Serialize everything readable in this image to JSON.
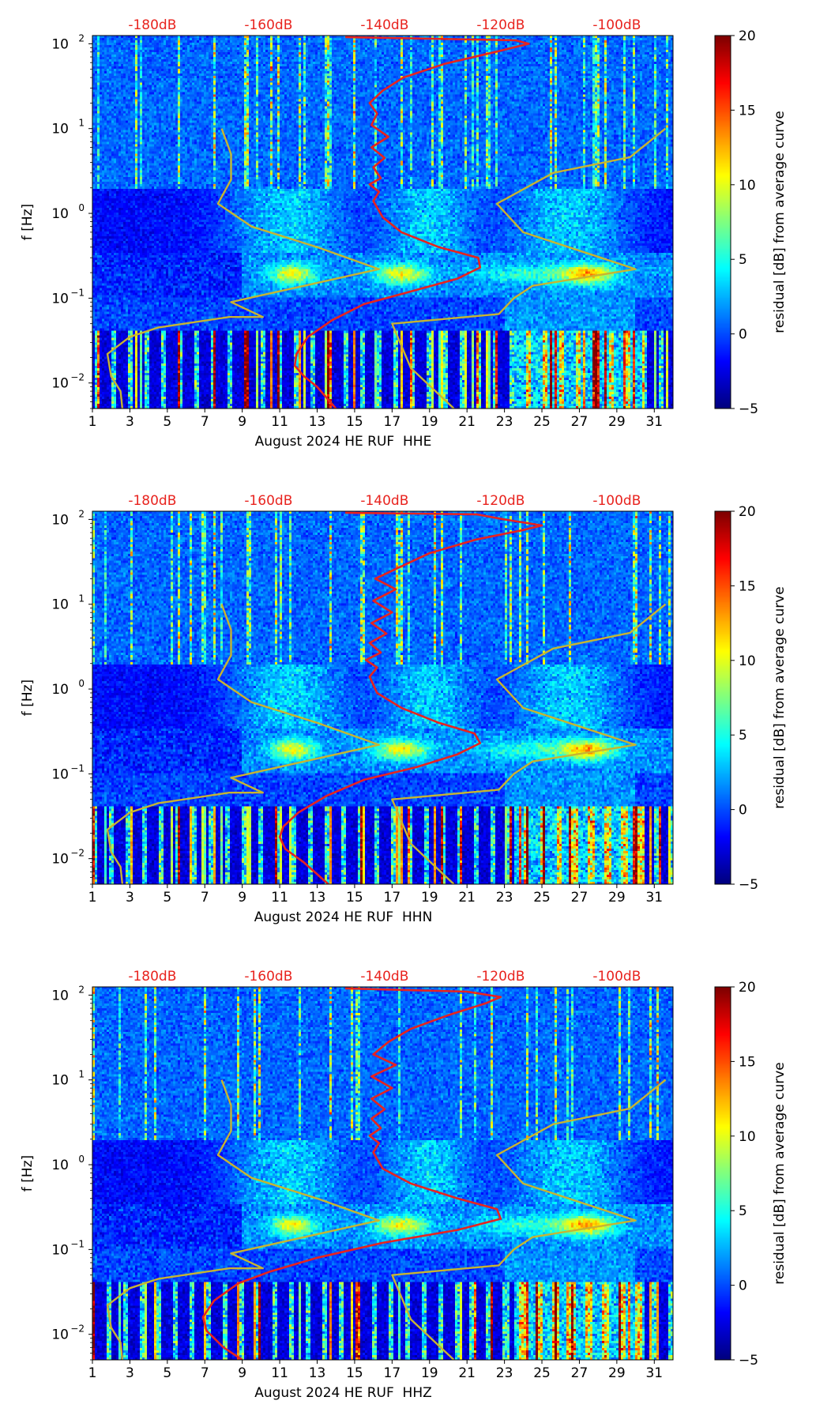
{
  "colorbar": {
    "label": "residual [dB] from average curve",
    "ticks": [
      "20",
      "15",
      "10",
      "5",
      "0",
      "−5"
    ],
    "tick_values": [
      20,
      15,
      10,
      5,
      0,
      -5
    ],
    "range": [
      -5,
      20
    ],
    "colormap": "jet"
  },
  "colors": {
    "psd_curve": "#e8231e",
    "noise_model": "#c8b431",
    "top_labels": "#e8231e"
  },
  "chart_data": [
    {
      "type": "heatmap",
      "channel": "HHE",
      "xlabel": "August 2024 HE RUF  HHE",
      "ylabel": "f [Hz]",
      "x_ticks": [
        "1",
        "3",
        "5",
        "7",
        "9",
        "11",
        "13",
        "15",
        "17",
        "19",
        "21",
        "23",
        "25",
        "27",
        "29",
        "31"
      ],
      "x_tick_values": [
        1,
        3,
        5,
        7,
        9,
        11,
        13,
        15,
        17,
        19,
        21,
        23,
        25,
        27,
        29,
        31
      ],
      "xlim": [
        1,
        32
      ],
      "y_scale": "log",
      "ylim": [
        0.005,
        125
      ],
      "y_ticks": [
        {
          "base": "10",
          "exp": "2",
          "value": 100
        },
        {
          "base": "10",
          "exp": "1",
          "value": 10
        },
        {
          "base": "10",
          "exp": "0",
          "value": 1
        },
        {
          "base": "10",
          "exp": "−1",
          "value": 0.1
        },
        {
          "base": "10",
          "exp": "−2",
          "value": 0.01
        }
      ],
      "top_axis_labels": [
        "-180dB",
        "-160dB",
        "-140dB",
        "-120dB",
        "-100dB"
      ],
      "top_axis_values": [
        -180,
        -160,
        -140,
        -120,
        -100
      ],
      "overlay_curves": [
        {
          "role": "station-average-psd",
          "color": "red",
          "points": [
            [
              14.0,
              0.005
            ],
            [
              13.0,
              0.009
            ],
            [
              12.3,
              0.012
            ],
            [
              11.8,
              0.016
            ],
            [
              11.9,
              0.022
            ],
            [
              12.5,
              0.035
            ],
            [
              13.8,
              0.055
            ],
            [
              15.5,
              0.085
            ],
            [
              18.0,
              0.12
            ],
            [
              20.5,
              0.17
            ],
            [
              21.7,
              0.23
            ],
            [
              21.6,
              0.3
            ],
            [
              19.5,
              0.4
            ],
            [
              17.5,
              0.6
            ],
            [
              16.5,
              0.9
            ],
            [
              16.0,
              1.4
            ],
            [
              16.3,
              1.8
            ],
            [
              15.8,
              2.2
            ],
            [
              16.4,
              2.6
            ],
            [
              16.0,
              3.5
            ],
            [
              16.6,
              4.5
            ],
            [
              15.9,
              6
            ],
            [
              16.8,
              8
            ],
            [
              15.9,
              11
            ],
            [
              16.2,
              15
            ],
            [
              15.8,
              20
            ],
            [
              16.5,
              28
            ],
            [
              17.6,
              40
            ],
            [
              19.8,
              58
            ],
            [
              22.5,
              80
            ],
            [
              24.3,
              100
            ],
            [
              23.6,
              110
            ],
            [
              14.5,
              120
            ]
          ]
        },
        {
          "role": "noise-model-low",
          "color": "olive",
          "points": [
            [
              2.6,
              0.005
            ],
            [
              2.5,
              0.008
            ],
            [
              2.0,
              0.012
            ],
            [
              1.8,
              0.022
            ],
            [
              3.0,
              0.035
            ],
            [
              4.5,
              0.045
            ],
            [
              8.3,
              0.06
            ],
            [
              10.1,
              0.06
            ],
            [
              8.4,
              0.09
            ],
            [
              16.3,
              0.22
            ],
            [
              13.0,
              0.4
            ],
            [
              9.5,
              0.7
            ],
            [
              7.7,
              1.3
            ],
            [
              8.4,
              2.5
            ],
            [
              8.4,
              5
            ],
            [
              7.9,
              10
            ]
          ]
        },
        {
          "role": "noise-model-high",
          "color": "olive",
          "points": [
            [
              20.3,
              0.005
            ],
            [
              18.0,
              0.015
            ],
            [
              17.0,
              0.05
            ],
            [
              22.7,
              0.065
            ],
            [
              23.5,
              0.1
            ],
            [
              24.5,
              0.14
            ],
            [
              30.0,
              0.22
            ],
            [
              24.0,
              0.6
            ],
            [
              22.6,
              1.3
            ],
            [
              25.6,
              3.0
            ],
            [
              29.7,
              4.6
            ],
            [
              31.6,
              10
            ]
          ]
        }
      ]
    },
    {
      "type": "heatmap",
      "channel": "HHN",
      "xlabel": "August 2024 HE RUF  HHN",
      "ylabel": "f [Hz]",
      "x_ticks": [
        "1",
        "3",
        "5",
        "7",
        "9",
        "11",
        "13",
        "15",
        "17",
        "19",
        "21",
        "23",
        "25",
        "27",
        "29",
        "31"
      ],
      "x_tick_values": [
        1,
        3,
        5,
        7,
        9,
        11,
        13,
        15,
        17,
        19,
        21,
        23,
        25,
        27,
        29,
        31
      ],
      "xlim": [
        1,
        32
      ],
      "y_scale": "log",
      "ylim": [
        0.005,
        125
      ],
      "y_ticks": [
        {
          "base": "10",
          "exp": "2",
          "value": 100
        },
        {
          "base": "10",
          "exp": "1",
          "value": 10
        },
        {
          "base": "10",
          "exp": "0",
          "value": 1
        },
        {
          "base": "10",
          "exp": "−1",
          "value": 0.1
        },
        {
          "base": "10",
          "exp": "−2",
          "value": 0.01
        }
      ],
      "top_axis_labels": [
        "-180dB",
        "-160dB",
        "-140dB",
        "-120dB",
        "-100dB"
      ],
      "top_axis_values": [
        -180,
        -160,
        -140,
        -120,
        -100
      ],
      "overlay_curves": [
        {
          "role": "station-average-psd",
          "color": "red",
          "points": [
            [
              13.6,
              0.005
            ],
            [
              12.3,
              0.009
            ],
            [
              11.3,
              0.013
            ],
            [
              11.0,
              0.018
            ],
            [
              11.2,
              0.024
            ],
            [
              12.0,
              0.035
            ],
            [
              13.5,
              0.055
            ],
            [
              15.5,
              0.085
            ],
            [
              18.3,
              0.12
            ],
            [
              20.5,
              0.17
            ],
            [
              21.7,
              0.23
            ],
            [
              21.4,
              0.3
            ],
            [
              19.5,
              0.4
            ],
            [
              17.5,
              0.6
            ],
            [
              16.2,
              0.9
            ],
            [
              15.8,
              1.4
            ],
            [
              16.2,
              1.8
            ],
            [
              15.6,
              2.2
            ],
            [
              16.4,
              2.7
            ],
            [
              15.8,
              3.5
            ],
            [
              16.7,
              4.5
            ],
            [
              15.9,
              6
            ],
            [
              17.0,
              8
            ],
            [
              16.0,
              11
            ],
            [
              17.2,
              15
            ],
            [
              16.1,
              20
            ],
            [
              17.5,
              28
            ],
            [
              19.0,
              40
            ],
            [
              21.5,
              58
            ],
            [
              24.0,
              75
            ],
            [
              25.0,
              85
            ],
            [
              23.0,
              100
            ],
            [
              21.5,
              115
            ],
            [
              14.5,
              120
            ]
          ]
        },
        {
          "role": "noise-model-low",
          "color": "olive",
          "points": [
            [
              2.6,
              0.005
            ],
            [
              2.5,
              0.008
            ],
            [
              2.0,
              0.012
            ],
            [
              1.8,
              0.022
            ],
            [
              3.0,
              0.035
            ],
            [
              4.5,
              0.045
            ],
            [
              8.3,
              0.06
            ],
            [
              10.1,
              0.06
            ],
            [
              8.4,
              0.09
            ],
            [
              16.3,
              0.22
            ],
            [
              13.0,
              0.4
            ],
            [
              9.5,
              0.7
            ],
            [
              7.7,
              1.3
            ],
            [
              8.4,
              2.5
            ],
            [
              8.4,
              5
            ],
            [
              7.9,
              10
            ]
          ]
        },
        {
          "role": "noise-model-high",
          "color": "olive",
          "points": [
            [
              20.3,
              0.005
            ],
            [
              18.0,
              0.015
            ],
            [
              17.0,
              0.05
            ],
            [
              22.7,
              0.065
            ],
            [
              23.5,
              0.1
            ],
            [
              24.5,
              0.14
            ],
            [
              30.0,
              0.22
            ],
            [
              24.0,
              0.6
            ],
            [
              22.6,
              1.3
            ],
            [
              25.6,
              3.0
            ],
            [
              29.7,
              4.6
            ],
            [
              31.6,
              10
            ]
          ]
        }
      ]
    },
    {
      "type": "heatmap",
      "channel": "HHZ",
      "xlabel": "August 2024 HE RUF  HHZ",
      "ylabel": "f [Hz]",
      "x_ticks": [
        "1",
        "3",
        "5",
        "7",
        "9",
        "11",
        "13",
        "15",
        "17",
        "19",
        "21",
        "23",
        "25",
        "27",
        "29",
        "31"
      ],
      "x_tick_values": [
        1,
        3,
        5,
        7,
        9,
        11,
        13,
        15,
        17,
        19,
        21,
        23,
        25,
        27,
        29,
        31
      ],
      "xlim": [
        1,
        32
      ],
      "y_scale": "log",
      "ylim": [
        0.005,
        125
      ],
      "y_ticks": [
        {
          "base": "10",
          "exp": "2",
          "value": 100
        },
        {
          "base": "10",
          "exp": "1",
          "value": 10
        },
        {
          "base": "10",
          "exp": "0",
          "value": 1
        },
        {
          "base": "10",
          "exp": "−1",
          "value": 0.1
        },
        {
          "base": "10",
          "exp": "−2",
          "value": 0.01
        }
      ],
      "top_axis_labels": [
        "-180dB",
        "-160dB",
        "-140dB",
        "-120dB",
        "-100dB"
      ],
      "top_axis_values": [
        -180,
        -160,
        -140,
        -120,
        -100
      ],
      "overlay_curves": [
        {
          "role": "station-average-psd",
          "color": "red",
          "points": [
            [
              9.0,
              0.005
            ],
            [
              8.0,
              0.007
            ],
            [
              7.1,
              0.011
            ],
            [
              6.9,
              0.016
            ],
            [
              7.5,
              0.025
            ],
            [
              8.8,
              0.04
            ],
            [
              10.5,
              0.055
            ],
            [
              13.0,
              0.08
            ],
            [
              16.5,
              0.12
            ],
            [
              20.5,
              0.17
            ],
            [
              22.8,
              0.23
            ],
            [
              22.6,
              0.3
            ],
            [
              20.5,
              0.4
            ],
            [
              18.0,
              0.6
            ],
            [
              16.5,
              0.9
            ],
            [
              16.0,
              1.4
            ],
            [
              16.3,
              1.8
            ],
            [
              15.8,
              2.2
            ],
            [
              16.4,
              2.7
            ],
            [
              15.9,
              3.5
            ],
            [
              16.6,
              4.5
            ],
            [
              15.9,
              6
            ],
            [
              17.0,
              8
            ],
            [
              15.9,
              11
            ],
            [
              17.2,
              15
            ],
            [
              16.0,
              20
            ],
            [
              16.8,
              28
            ],
            [
              18.0,
              40
            ],
            [
              20.0,
              58
            ],
            [
              22.0,
              80
            ],
            [
              22.8,
              95
            ],
            [
              21.0,
              110
            ],
            [
              14.5,
              120
            ]
          ]
        },
        {
          "role": "noise-model-low",
          "color": "olive",
          "points": [
            [
              2.6,
              0.005
            ],
            [
              2.5,
              0.008
            ],
            [
              2.0,
              0.012
            ],
            [
              1.8,
              0.022
            ],
            [
              3.0,
              0.035
            ],
            [
              4.5,
              0.045
            ],
            [
              8.3,
              0.06
            ],
            [
              10.1,
              0.06
            ],
            [
              8.4,
              0.09
            ],
            [
              16.3,
              0.22
            ],
            [
              13.0,
              0.4
            ],
            [
              9.5,
              0.7
            ],
            [
              7.7,
              1.3
            ],
            [
              8.4,
              2.5
            ],
            [
              8.4,
              5
            ],
            [
              7.9,
              10
            ]
          ]
        },
        {
          "role": "noise-model-high",
          "color": "olive",
          "points": [
            [
              20.3,
              0.005
            ],
            [
              18.0,
              0.015
            ],
            [
              17.0,
              0.05
            ],
            [
              22.7,
              0.065
            ],
            [
              23.5,
              0.1
            ],
            [
              24.5,
              0.14
            ],
            [
              30.0,
              0.22
            ],
            [
              24.0,
              0.6
            ],
            [
              22.6,
              1.3
            ],
            [
              25.6,
              3.0
            ],
            [
              29.7,
              4.6
            ],
            [
              31.6,
              10
            ]
          ]
        }
      ]
    }
  ]
}
